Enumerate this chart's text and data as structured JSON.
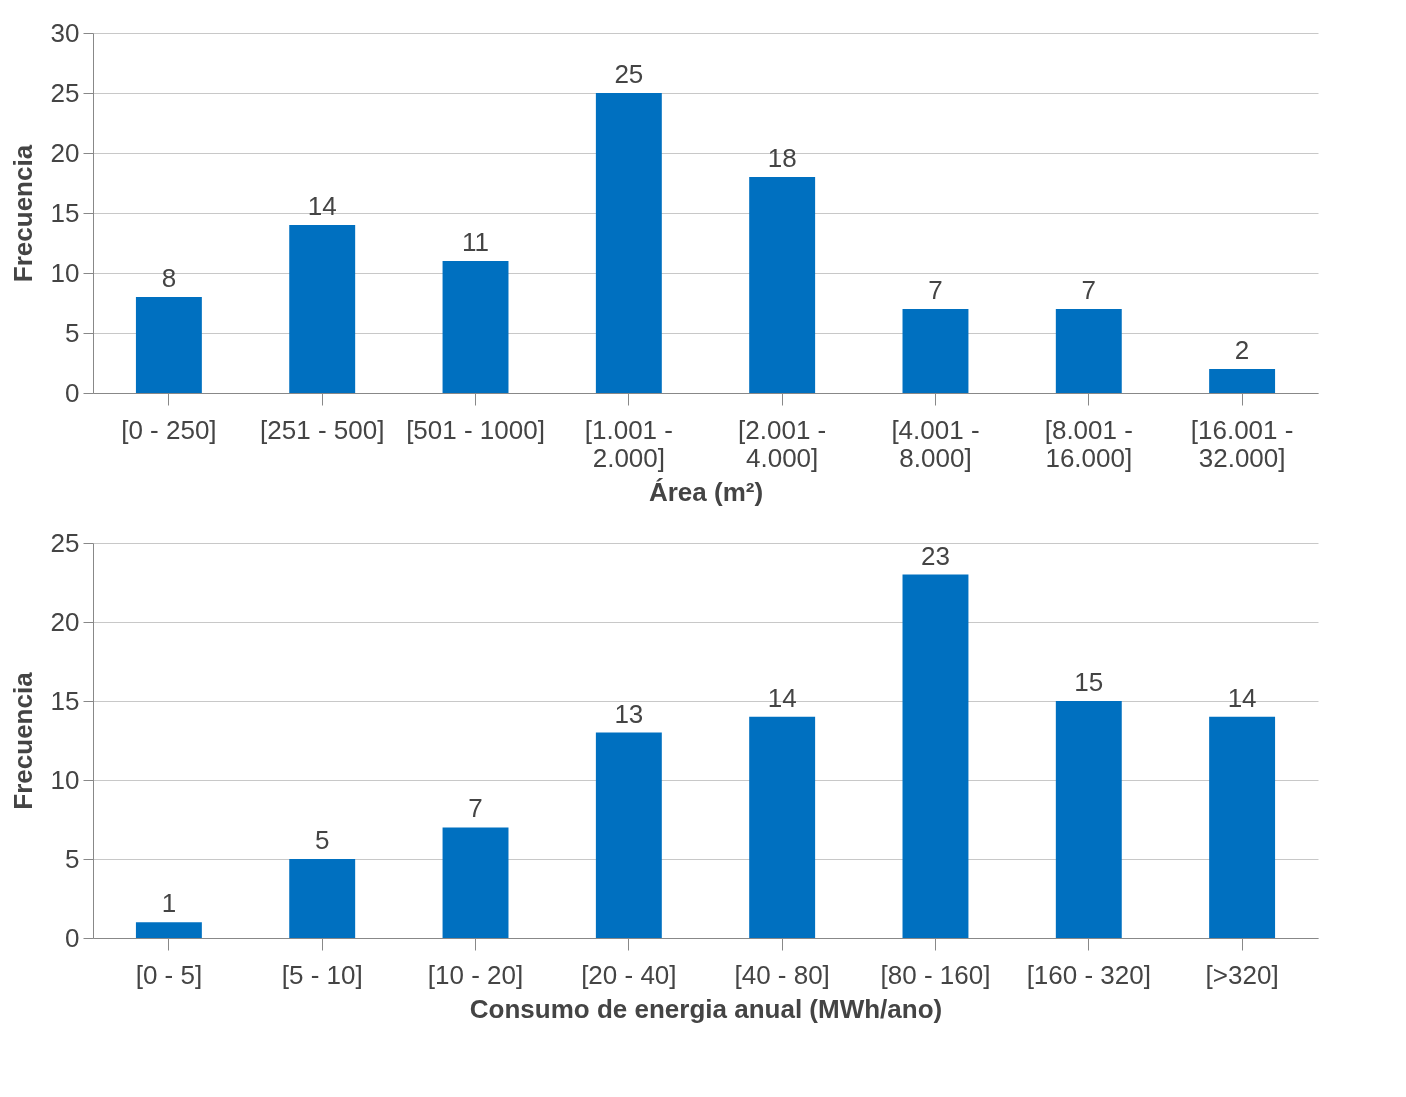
{
  "chart_data": [
    {
      "type": "bar",
      "xlabel": "Área (m²)",
      "ylabel": "Frecuencia",
      "categories": [
        "[0 - 250]",
        "[251 - 500]",
        "[501 - 1000]",
        "[1.001 - 2.000]",
        "[2.001 - 4.000]",
        "[4.001 - 8.000]",
        "[8.001 - 16.000]",
        "[16.001 - 32.000]"
      ],
      "values": [
        8,
        14,
        11,
        25,
        18,
        7,
        7,
        2
      ],
      "color": "#0070c0",
      "ylim": [
        0,
        30
      ],
      "yticks": [
        0,
        5,
        10,
        15,
        20,
        25,
        30
      ],
      "grid": "y",
      "data_labels": true
    },
    {
      "type": "bar",
      "xlabel": "Consumo de energia anual (MWh/ano)",
      "ylabel": "Frecuencia",
      "categories": [
        "[0 - 5]",
        "[5 - 10]",
        "[10 - 20]",
        "[20 - 40]",
        "[40 - 80]",
        "[80 - 160]",
        "[160 - 320]",
        "[>320]"
      ],
      "values": [
        1,
        5,
        7,
        13,
        14,
        23,
        15,
        14
      ],
      "color": "#0070c0",
      "ylim": [
        0,
        25
      ],
      "yticks": [
        0,
        5,
        10,
        15,
        20,
        25
      ],
      "grid": "y",
      "data_labels": true
    }
  ]
}
